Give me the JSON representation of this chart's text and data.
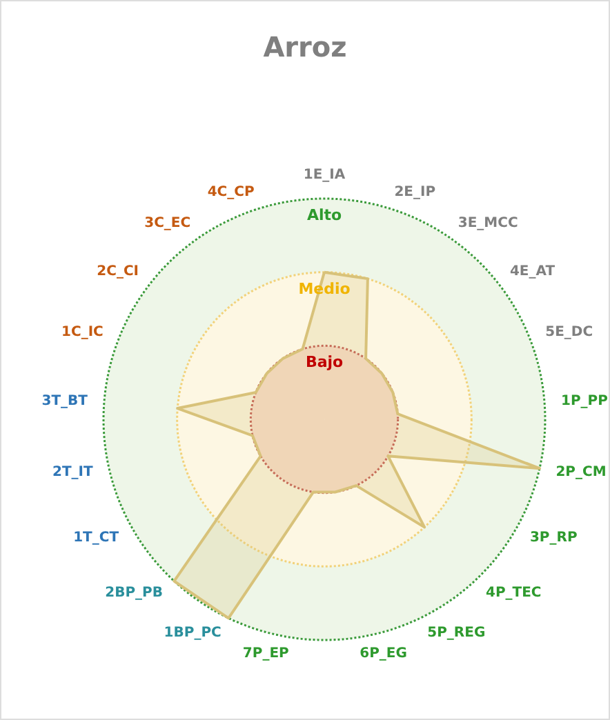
{
  "chart_data": {
    "type": "radar",
    "title": "Arroz",
    "categories": [
      "1E_IA",
      "2E_IP",
      "3E_MCC",
      "4E_AT",
      "5E_DC",
      "1P_PP",
      "2P_CM",
      "3P_RP",
      "4P_TEC",
      "5P_REG",
      "6P_EG",
      "7P_EP",
      "1BP_PC",
      "2BP_PB",
      "1T_CT",
      "2T_IT",
      "3T_BT",
      "1C_IC",
      "2C_CI",
      "3C_EC",
      "4C_CP"
    ],
    "series": [
      {
        "color": "#d8c27a",
        "values": [
          2,
          2,
          1,
          1,
          1,
          1,
          3,
          1,
          2,
          1,
          1,
          1,
          3,
          3,
          1,
          1,
          2,
          1,
          1,
          1,
          1
        ]
      }
    ],
    "ylim": [
      0,
      3
    ],
    "yticks": [
      {
        "value": 1,
        "label": "Bajo"
      },
      {
        "value": 2,
        "label": "Medio"
      },
      {
        "value": 3,
        "label": "Alto"
      }
    ],
    "grid": true,
    "marker": "none"
  }
}
